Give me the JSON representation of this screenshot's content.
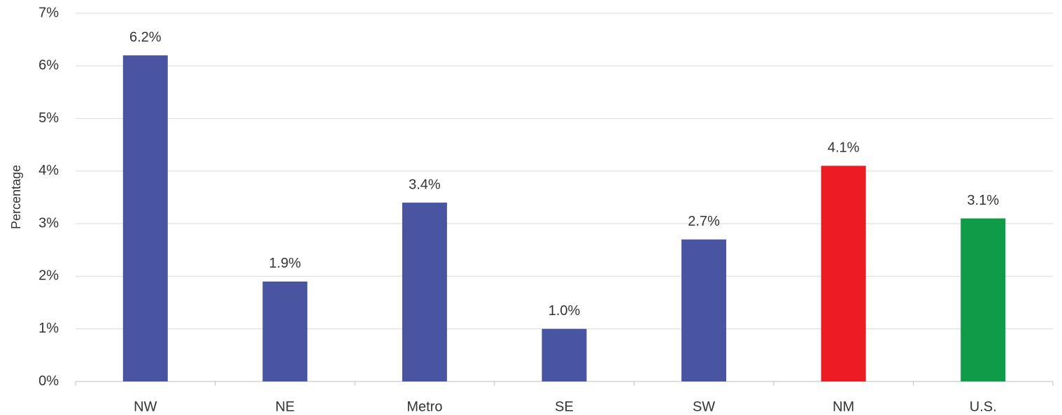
{
  "chart_data": {
    "type": "bar",
    "y_label": "Percentage",
    "categories": [
      "NW",
      "NE",
      "Metro",
      "SE",
      "SW",
      "NM",
      "U.S."
    ],
    "values": [
      6.2,
      1.9,
      3.4,
      1.0,
      2.7,
      4.1,
      3.1
    ],
    "value_labels": [
      "6.2%",
      "1.9%",
      "3.4%",
      "1.0%",
      "2.7%",
      "4.1%",
      "3.1%"
    ],
    "colors": [
      "#4a55a2",
      "#4a55a2",
      "#4a55a2",
      "#4a55a2",
      "#4a55a2",
      "#ec1c24",
      "#0f9b48"
    ],
    "ylim": [
      0,
      7
    ],
    "yticks": [
      {
        "value": 0,
        "label": "0%"
      },
      {
        "value": 1,
        "label": "1%"
      },
      {
        "value": 2,
        "label": "2%"
      },
      {
        "value": 3,
        "label": "3%"
      },
      {
        "value": 4,
        "label": "4%"
      },
      {
        "value": 5,
        "label": "5%"
      },
      {
        "value": 6,
        "label": "6%"
      },
      {
        "value": 7,
        "label": "7%"
      }
    ],
    "grid": true
  }
}
